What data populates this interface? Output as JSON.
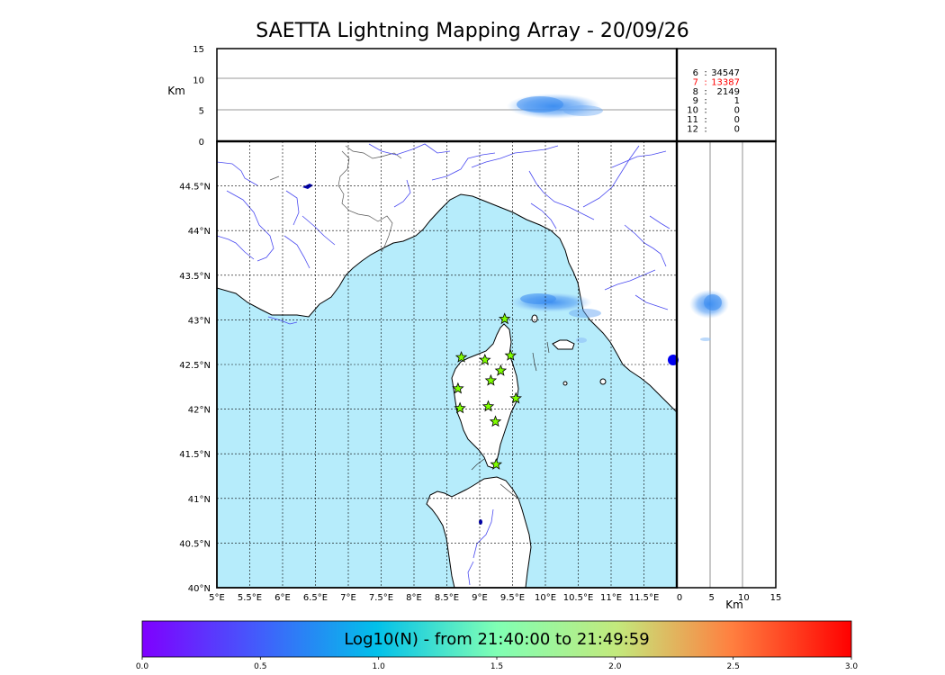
{
  "title": "SAETTA Lightning Mapping Array - 20/09/26",
  "map": {
    "lon_labels": [
      "5°E",
      "5.5°E",
      "6°E",
      "6.5°E",
      "7°E",
      "7.5°E",
      "8°E",
      "8.5°E",
      "9°E",
      "9.5°E",
      "10°E",
      "10.5°E",
      "11°E",
      "11.5°E"
    ],
    "lat_labels": [
      "40°N",
      "40.5°N",
      "41°N",
      "41.5°N",
      "42°N",
      "42.5°N",
      "43°N",
      "43.5°N",
      "44°N",
      "44.5°N"
    ],
    "lon_range": [
      5.0,
      12.0
    ],
    "lat_range": [
      40.0,
      45.0
    ],
    "colors": {
      "sea": "#b6ecfb",
      "rivers": "#4a4af0",
      "borders": "#555555",
      "coast": "#000000",
      "stations": "#7fff00"
    },
    "stations": [
      {
        "lon": 9.38,
        "lat": 43.01
      },
      {
        "lon": 8.72,
        "lat": 42.58
      },
      {
        "lon": 9.08,
        "lat": 42.55
      },
      {
        "lon": 9.47,
        "lat": 42.6
      },
      {
        "lon": 9.32,
        "lat": 42.43
      },
      {
        "lon": 9.17,
        "lat": 42.32
      },
      {
        "lon": 8.67,
        "lat": 42.23
      },
      {
        "lon": 9.55,
        "lat": 42.12
      },
      {
        "lon": 9.13,
        "lat": 42.03
      },
      {
        "lon": 8.7,
        "lat": 42.01
      },
      {
        "lon": 9.24,
        "lat": 41.86
      },
      {
        "lon": 9.25,
        "lat": 41.38
      }
    ]
  },
  "altitude_panel": {
    "ylabel": "Km",
    "ticks": [
      "0",
      "5",
      "10",
      "15"
    ],
    "range": [
      0,
      15
    ]
  },
  "side_panel": {
    "xlabel": "Km",
    "ticks": [
      "0",
      "5",
      "10",
      "15"
    ]
  },
  "station_counts": [
    {
      "label": "6",
      "value": "34547",
      "color": "#000000"
    },
    {
      "label": "7",
      "value": "13387",
      "color": "#ff0000"
    },
    {
      "label": "8",
      "value": "2149",
      "color": "#000000"
    },
    {
      "label": "9",
      "value": "1",
      "color": "#000000"
    },
    {
      "label": "10",
      "value": "0",
      "color": "#000000"
    },
    {
      "label": "11",
      "value": "0",
      "color": "#000000"
    },
    {
      "label": "12",
      "value": "0",
      "color": "#000000"
    }
  ],
  "colorbar": {
    "label": "Log10(N) - from 21:40:00 to 21:49:59",
    "ticks": [
      "0.0",
      "0.5",
      "1.0",
      "1.5",
      "2.0",
      "2.5",
      "3.0"
    ],
    "range": [
      0.0,
      3.0
    ]
  }
}
